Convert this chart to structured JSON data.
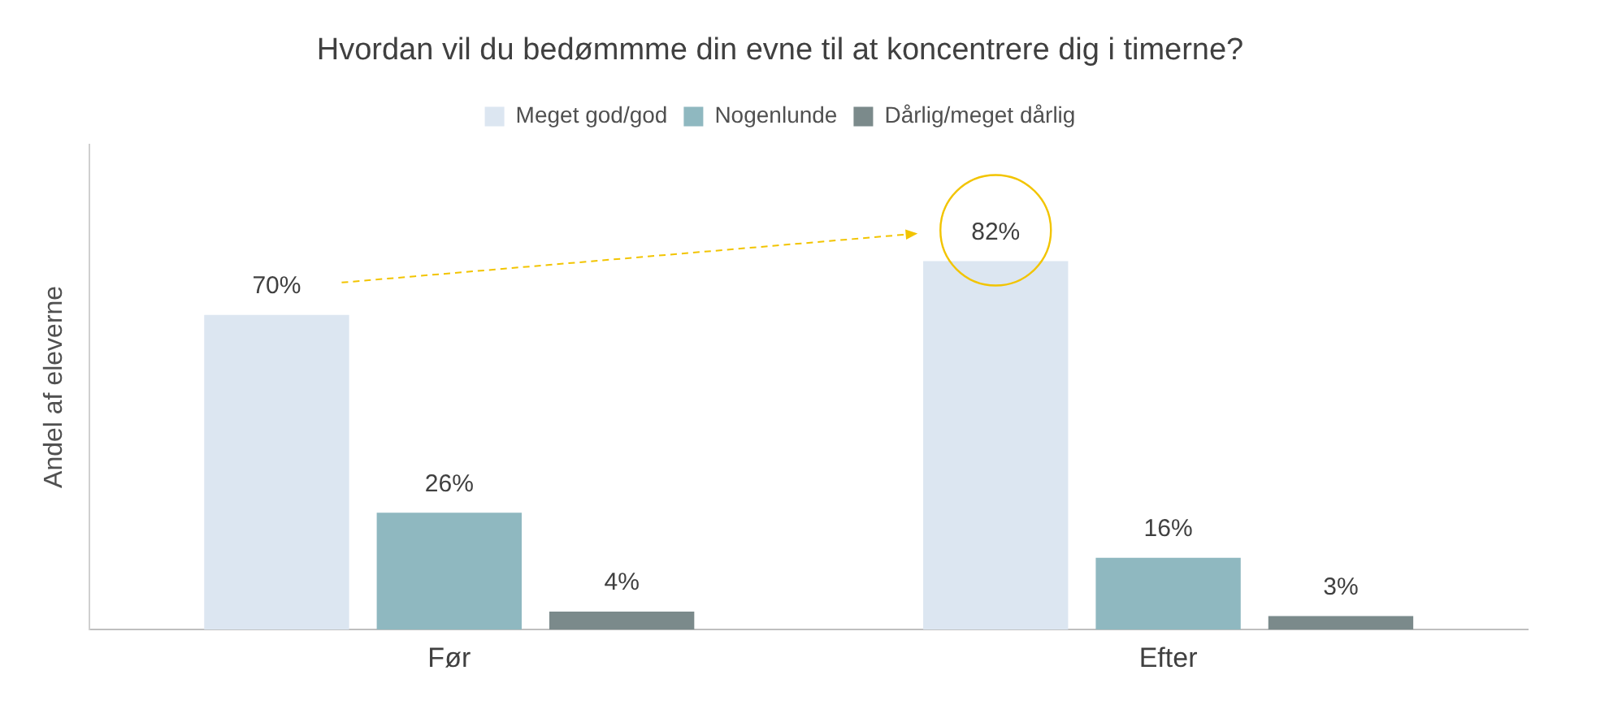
{
  "chart_data": {
    "type": "bar",
    "title": "Hvordan vil du bedømmme din evne til at koncentrere dig i timerne?",
    "ylabel": "Andel af eleverne",
    "categories": [
      "Før",
      "Efter"
    ],
    "series": [
      {
        "name": "Meget god/god",
        "color": "#dce6f1",
        "values": [
          70,
          82
        ],
        "value_labels": [
          "70%",
          "82%"
        ]
      },
      {
        "name": "Nogenlunde",
        "color": "#8fb8c0",
        "values": [
          26,
          16
        ],
        "value_labels": [
          "26%",
          "16%"
        ]
      },
      {
        "name": "Dårlig/meget dårlig",
        "color": "#7b8a8b",
        "values": [
          4,
          3
        ],
        "value_labels": [
          "4%",
          "3%"
        ]
      }
    ],
    "legend": "top",
    "grid": false
  }
}
